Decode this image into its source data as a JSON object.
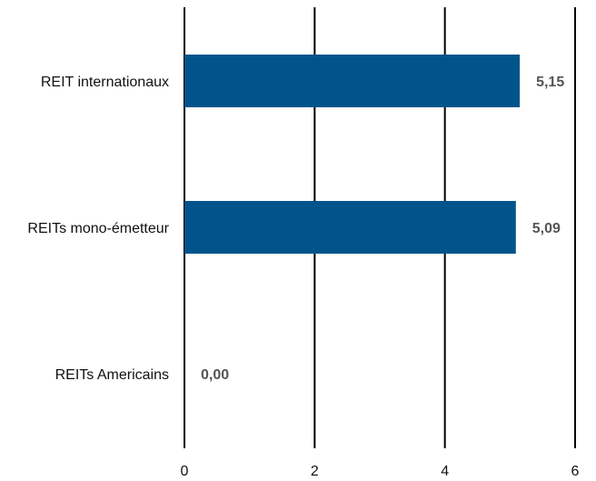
{
  "chart_data": {
    "type": "bar",
    "orientation": "horizontal",
    "categories": [
      "REIT internationaux",
      "REITs mono-émetteur",
      "REITs Americains"
    ],
    "values": [
      5.15,
      5.09,
      0.0
    ],
    "data_labels": [
      "5,15",
      "5,09",
      "0,00"
    ],
    "xlim": [
      0,
      6
    ],
    "x_ticks": [
      0,
      2,
      4,
      6
    ],
    "x_tick_labels": [
      "0",
      "2",
      "4",
      "6"
    ],
    "bar_color": "#00548B",
    "label_color": "#555555",
    "grid": "vertical",
    "legend": "none"
  }
}
